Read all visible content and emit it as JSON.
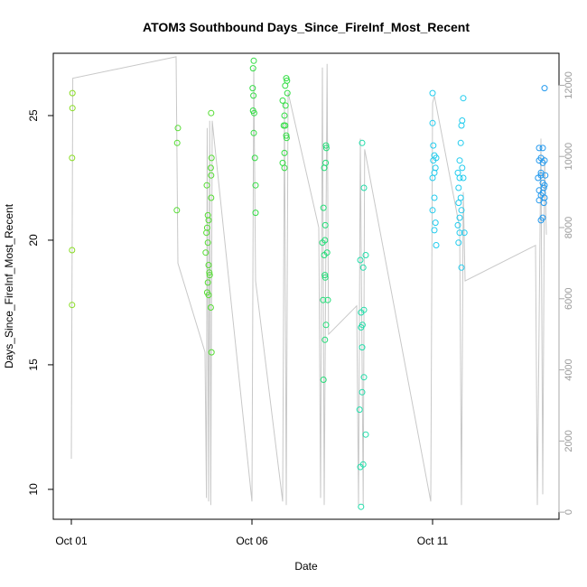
{
  "chart_data": {
    "type": "scatter",
    "title": "ATOM3 Southbound Days_Since_FireInf_Most_Recent",
    "xlabel": "Date",
    "ylabel": "Days_Since_FireInf_Most_Recent",
    "x_ticks": [
      "Oct 01",
      "Oct 06",
      "Oct 11"
    ],
    "x_tick_values": [
      1,
      6,
      11
    ],
    "xlim": [
      0.5,
      14.5
    ],
    "ylim": [
      8.8,
      27.5
    ],
    "y_ticks": [
      10,
      15,
      20,
      25
    ],
    "y2lim": [
      -200,
      12900
    ],
    "y2_ticks": [
      0,
      2000,
      4000,
      6000,
      8000,
      10000,
      12000
    ],
    "grid": false,
    "legend": "none",
    "colors": {
      "altitude_line": "#c8c8c8",
      "right_axis": "#aaaaaa",
      "frame": "#000000"
    },
    "series": [
      {
        "points": [
          {
            "x": 1.03,
            "y": 25.9
          },
          {
            "x": 1.03,
            "y": 25.3
          },
          {
            "x": 1.02,
            "y": 23.3
          },
          {
            "x": 1.02,
            "y": 19.6
          },
          {
            "x": 1.02,
            "y": 17.4
          }
        ],
        "color": "#88dd22"
      },
      {
        "points": [
          {
            "x": 3.95,
            "y": 24.5
          },
          {
            "x": 3.93,
            "y": 23.9
          },
          {
            "x": 3.92,
            "y": 21.2
          },
          {
            "x": 4.75,
            "y": 22.2
          },
          {
            "x": 4.78,
            "y": 21.0
          },
          {
            "x": 4.8,
            "y": 20.8
          },
          {
            "x": 4.76,
            "y": 20.5
          },
          {
            "x": 4.74,
            "y": 20.3
          },
          {
            "x": 4.78,
            "y": 19.9
          },
          {
            "x": 4.72,
            "y": 19.5
          },
          {
            "x": 4.8,
            "y": 19.0
          },
          {
            "x": 4.83,
            "y": 18.6
          },
          {
            "x": 4.82,
            "y": 18.7
          },
          {
            "x": 4.78,
            "y": 18.3
          },
          {
            "x": 4.76,
            "y": 17.9
          },
          {
            "x": 4.8,
            "y": 17.8
          },
          {
            "x": 4.86,
            "y": 17.3
          },
          {
            "x": 4.87,
            "y": 25.1
          },
          {
            "x": 4.88,
            "y": 23.3
          },
          {
            "x": 4.86,
            "y": 22.9
          },
          {
            "x": 4.87,
            "y": 22.6
          },
          {
            "x": 4.87,
            "y": 21.7
          },
          {
            "x": 4.88,
            "y": 15.5
          }
        ],
        "color": "#55dd33"
      },
      {
        "points": [
          {
            "x": 6.05,
            "y": 27.2
          },
          {
            "x": 6.03,
            "y": 26.9
          },
          {
            "x": 6.02,
            "y": 26.1
          },
          {
            "x": 6.04,
            "y": 25.8
          },
          {
            "x": 6.03,
            "y": 25.2
          },
          {
            "x": 6.06,
            "y": 25.1
          },
          {
            "x": 6.05,
            "y": 24.3
          },
          {
            "x": 6.08,
            "y": 23.3
          },
          {
            "x": 6.1,
            "y": 22.2
          },
          {
            "x": 6.1,
            "y": 21.1
          },
          {
            "x": 6.95,
            "y": 26.5
          },
          {
            "x": 6.97,
            "y": 26.4
          },
          {
            "x": 6.92,
            "y": 26.2
          },
          {
            "x": 6.98,
            "y": 25.9
          },
          {
            "x": 6.85,
            "y": 25.6
          },
          {
            "x": 6.93,
            "y": 25.4
          },
          {
            "x": 6.9,
            "y": 25.0
          },
          {
            "x": 6.88,
            "y": 24.6
          },
          {
            "x": 6.92,
            "y": 24.6
          },
          {
            "x": 6.95,
            "y": 24.2
          },
          {
            "x": 6.96,
            "y": 24.1
          },
          {
            "x": 6.9,
            "y": 23.5
          },
          {
            "x": 6.85,
            "y": 23.1
          },
          {
            "x": 6.9,
            "y": 22.9
          }
        ],
        "color": "#33dd44"
      },
      {
        "points": [
          {
            "x": 8.05,
            "y": 23.8
          },
          {
            "x": 8.06,
            "y": 23.7
          },
          {
            "x": 8.04,
            "y": 23.1
          },
          {
            "x": 8.0,
            "y": 22.9
          },
          {
            "x": 7.98,
            "y": 21.3
          },
          {
            "x": 8.03,
            "y": 20.6
          },
          {
            "x": 8.02,
            "y": 20.0
          },
          {
            "x": 7.95,
            "y": 19.9
          },
          {
            "x": 8.08,
            "y": 19.5
          },
          {
            "x": 8.0,
            "y": 19.4
          },
          {
            "x": 8.02,
            "y": 18.6
          },
          {
            "x": 8.03,
            "y": 18.5
          },
          {
            "x": 7.97,
            "y": 17.6
          },
          {
            "x": 8.1,
            "y": 17.6
          },
          {
            "x": 8.05,
            "y": 16.6
          },
          {
            "x": 8.02,
            "y": 16.0
          },
          {
            "x": 7.98,
            "y": 14.4
          }
        ],
        "color": "#22dd77"
      },
      {
        "points": [
          {
            "x": 9.05,
            "y": 23.9
          },
          {
            "x": 9.1,
            "y": 22.1
          },
          {
            "x": 9.15,
            "y": 19.4
          },
          {
            "x": 9.0,
            "y": 19.2
          },
          {
            "x": 9.08,
            "y": 18.9
          },
          {
            "x": 9.1,
            "y": 17.2
          },
          {
            "x": 9.02,
            "y": 17.1
          },
          {
            "x": 9.06,
            "y": 16.6
          },
          {
            "x": 9.02,
            "y": 16.5
          },
          {
            "x": 9.05,
            "y": 15.7
          },
          {
            "x": 9.1,
            "y": 14.5
          },
          {
            "x": 9.05,
            "y": 13.9
          },
          {
            "x": 8.98,
            "y": 13.2
          },
          {
            "x": 9.15,
            "y": 12.2
          },
          {
            "x": 9.08,
            "y": 11.0
          },
          {
            "x": 9.0,
            "y": 10.9
          },
          {
            "x": 9.02,
            "y": 9.3
          }
        ],
        "color": "#22ddaa"
      },
      {
        "points": [
          {
            "x": 11.0,
            "y": 25.9
          },
          {
            "x": 11.0,
            "y": 24.7
          },
          {
            "x": 11.05,
            "y": 23.4
          },
          {
            "x": 11.02,
            "y": 23.2
          },
          {
            "x": 11.08,
            "y": 22.9
          },
          {
            "x": 11.05,
            "y": 22.7
          },
          {
            "x": 11.0,
            "y": 22.5
          },
          {
            "x": 11.05,
            "y": 21.7
          },
          {
            "x": 11.0,
            "y": 21.2
          },
          {
            "x": 11.08,
            "y": 20.7
          },
          {
            "x": 11.05,
            "y": 20.4
          },
          {
            "x": 11.1,
            "y": 19.8
          },
          {
            "x": 11.02,
            "y": 23.8
          },
          {
            "x": 11.1,
            "y": 23.3
          },
          {
            "x": 11.85,
            "y": 25.7
          },
          {
            "x": 11.82,
            "y": 24.8
          },
          {
            "x": 11.8,
            "y": 24.6
          },
          {
            "x": 11.78,
            "y": 23.9
          },
          {
            "x": 11.75,
            "y": 23.2
          },
          {
            "x": 11.82,
            "y": 22.9
          },
          {
            "x": 11.7,
            "y": 22.7
          },
          {
            "x": 11.75,
            "y": 22.5
          },
          {
            "x": 11.85,
            "y": 22.5
          },
          {
            "x": 11.72,
            "y": 22.1
          },
          {
            "x": 11.78,
            "y": 21.7
          },
          {
            "x": 11.72,
            "y": 21.5
          },
          {
            "x": 11.8,
            "y": 21.2
          },
          {
            "x": 11.75,
            "y": 20.9
          },
          {
            "x": 11.7,
            "y": 20.6
          },
          {
            "x": 11.75,
            "y": 20.3
          },
          {
            "x": 11.88,
            "y": 20.3
          },
          {
            "x": 11.72,
            "y": 19.9
          },
          {
            "x": 11.8,
            "y": 18.9
          }
        ],
        "color": "#22ccee"
      },
      {
        "points": [
          {
            "x": 14.1,
            "y": 26.1
          },
          {
            "x": 13.95,
            "y": 23.7
          },
          {
            "x": 14.05,
            "y": 23.7
          },
          {
            "x": 14.0,
            "y": 23.3
          },
          {
            "x": 14.1,
            "y": 23.2
          },
          {
            "x": 13.95,
            "y": 23.2
          },
          {
            "x": 14.05,
            "y": 23.1
          },
          {
            "x": 14.0,
            "y": 22.7
          },
          {
            "x": 14.12,
            "y": 22.6
          },
          {
            "x": 14.0,
            "y": 22.6
          },
          {
            "x": 13.92,
            "y": 22.5
          },
          {
            "x": 14.05,
            "y": 22.3
          },
          {
            "x": 14.1,
            "y": 22.2
          },
          {
            "x": 14.08,
            "y": 22.1
          },
          {
            "x": 13.95,
            "y": 22.0
          },
          {
            "x": 14.05,
            "y": 21.9
          },
          {
            "x": 14.0,
            "y": 21.8
          },
          {
            "x": 14.1,
            "y": 21.7
          },
          {
            "x": 13.95,
            "y": 21.6
          },
          {
            "x": 14.08,
            "y": 21.5
          },
          {
            "x": 14.05,
            "y": 20.9
          },
          {
            "x": 14.0,
            "y": 20.8
          }
        ],
        "color": "#2299ee"
      }
    ],
    "secondary_series": {
      "name": "",
      "axis": "right",
      "x": [
        1.0,
        1.04,
        3.9,
        3.95,
        4.7,
        4.74,
        4.76,
        4.8,
        4.83,
        4.86,
        4.9,
        6.0,
        6.05,
        6.1,
        6.85,
        6.9,
        6.95,
        7.0,
        7.85,
        7.9,
        7.95,
        8.0,
        8.08,
        8.12,
        8.9,
        8.95,
        9.0,
        9.08,
        9.12,
        10.95,
        11.0,
        11.05,
        11.75,
        11.8,
        11.85,
        11.9,
        13.85,
        13.9,
        14.0,
        14.05,
        14.1,
        14.15
      ],
      "y": [
        1500,
        12200,
        12800,
        7000,
        4500,
        400,
        10800,
        300,
        11000,
        200,
        11000,
        300,
        12500,
        6500,
        300,
        11500,
        200,
        11800,
        8000,
        400,
        12500,
        200,
        12600,
        5000,
        5800,
        200,
        10500,
        200,
        10200,
        300,
        11500,
        11700,
        8000,
        200,
        9000,
        6500,
        7500,
        200,
        10500,
        500,
        10000,
        7800
      ]
    }
  }
}
